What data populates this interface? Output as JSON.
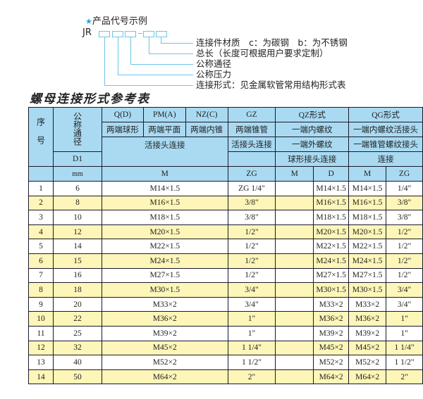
{
  "intro": {
    "star_icon": "star-icon",
    "heading": "产品代号示例",
    "code_prefix": "JR",
    "labels": [
      "连接件材质　c：为碳钢　b：为不锈钢",
      "总长（长度可根据用户要求定制）",
      "公称通径",
      "公称压力",
      "连接形式：见金属软管常用结构形式表"
    ]
  },
  "title": "螺母连接形式参考表",
  "header": {
    "seq": "序号",
    "nominal": "公称通径",
    "q": "Q(D)",
    "pm": "PM(A)",
    "nz": "NZ(C)",
    "gz": "GZ",
    "qz": "QZ形式",
    "qg": "QG形式",
    "q_desc": "两端球形",
    "pm_desc": "两端平面",
    "nz_desc": "两端内锥",
    "gz_desc": "两端锥管",
    "qz_desc1": "一端内螺纹",
    "qg_desc1": "一端内螺纹活接头",
    "live_joint": "活接头连接",
    "gz_conn": "活接头连接",
    "qz_desc2": "一端外螺纹",
    "qg_desc2": "一端锥管螺纹接头",
    "d1": "D1",
    "qz_desc3": "球形接头连接",
    "qg_desc3": "连接",
    "mm": "mm",
    "m": "M",
    "zg": "ZG",
    "qz_m": "M",
    "qz_d": "D",
    "qg_m": "M",
    "qg_zg": "ZG"
  },
  "rows": [
    {
      "n": "1",
      "d1": "6",
      "m": "M14×1.5",
      "zg": "ZG 1/4\"",
      "qz_m": "",
      "qz_d": "M14×1.5",
      "qg_m": "M14×1.5",
      "qg_zg": "1/4\""
    },
    {
      "n": "2",
      "d1": "8",
      "m": "M16×1.5",
      "zg": "3/8\"",
      "qz_m": "",
      "qz_d": "M16×1.5",
      "qg_m": "M16×1.5",
      "qg_zg": "3/8\""
    },
    {
      "n": "3",
      "d1": "10",
      "m": "M18×1.5",
      "zg": "3/8\"",
      "qz_m": "",
      "qz_d": "M18×1.5",
      "qg_m": "M18×1.5",
      "qg_zg": "3/8\""
    },
    {
      "n": "4",
      "d1": "12",
      "m": "M20×1.5",
      "zg": "1/2\"",
      "qz_m": "",
      "qz_d": "M20×1.5",
      "qg_m": "M20×1.5",
      "qg_zg": "1/2\""
    },
    {
      "n": "5",
      "d1": "14",
      "m": "M22×1.5",
      "zg": "1/2\"",
      "qz_m": "",
      "qz_d": "M22×1.5",
      "qg_m": "M22×1.5",
      "qg_zg": "1/2\""
    },
    {
      "n": "6",
      "d1": "15",
      "m": "M24×1.5",
      "zg": "1/2\"",
      "qz_m": "",
      "qz_d": "M24×1.5",
      "qg_m": "M24×1.5",
      "qg_zg": "1/2\""
    },
    {
      "n": "7",
      "d1": "16",
      "m": "M27×1.5",
      "zg": "1/2\"",
      "qz_m": "",
      "qz_d": "M27×1.5",
      "qg_m": "M27×1.5",
      "qg_zg": "1/2\""
    },
    {
      "n": "8",
      "d1": "18",
      "m": "M30×1.5",
      "zg": "3/4\"",
      "qz_m": "",
      "qz_d": "M30×1.5",
      "qg_m": "M30×1.5",
      "qg_zg": "3/4\""
    },
    {
      "n": "9",
      "d1": "20",
      "m": "M33×2",
      "zg": "3/4\"",
      "qz_m": "",
      "qz_d": "M33×2",
      "qg_m": "M33×2",
      "qg_zg": "3/4\""
    },
    {
      "n": "10",
      "d1": "22",
      "m": "M36×2",
      "zg": "1\"",
      "qz_m": "",
      "qz_d": "M36×2",
      "qg_m": "M36×2",
      "qg_zg": "1\""
    },
    {
      "n": "11",
      "d1": "25",
      "m": "M39×2",
      "zg": "1\"",
      "qz_m": "",
      "qz_d": "M39×2",
      "qg_m": "M39×2",
      "qg_zg": "1\""
    },
    {
      "n": "12",
      "d1": "32",
      "m": "M45×2",
      "zg": "1 1/4\"",
      "qz_m": "",
      "qz_d": "M45×2",
      "qg_m": "M45×2",
      "qg_zg": "1 1/4\""
    },
    {
      "n": "13",
      "d1": "40",
      "m": "M52×2",
      "zg": "1 1/2\"",
      "qz_m": "",
      "qz_d": "M52×2",
      "qg_m": "M52×2",
      "qg_zg": "1 1/2\""
    },
    {
      "n": "14",
      "d1": "50",
      "m": "M64×2",
      "zg": "2\"",
      "qz_m": "",
      "qz_d": "M64×2",
      "qg_m": "M64×2",
      "qg_zg": "2\""
    }
  ],
  "colors": {
    "header_bg": "#a9daf2",
    "stripe": "#fdf6b8",
    "line": "#6cc6e6",
    "star": "#2a9fd6"
  }
}
